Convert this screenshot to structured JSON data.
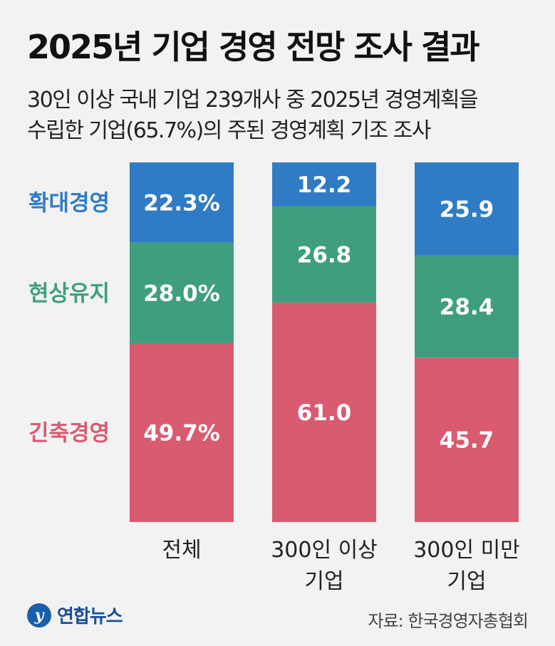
{
  "title": "2025년 기업 경영 전망 조사 결과",
  "subtitle_lines": [
    "30인 이상 국내 기업 239개사 중 2025년 경영계획을",
    "수립한 기업(65.7%)의 주된 경영계획 기조 조사"
  ],
  "chart_data": {
    "type": "bar",
    "stacked": true,
    "normalized_percent": true,
    "ylim": [
      0,
      100
    ],
    "categories": [
      [
        "전체"
      ],
      [
        "300인 이상",
        "기업"
      ],
      [
        "300인 미만",
        "기업"
      ]
    ],
    "series": [
      {
        "name": "긴축경영",
        "color": "#d95b70",
        "values": [
          49.7,
          61.0,
          45.7
        ],
        "labels": [
          "49.7%",
          "61.0",
          "45.7"
        ]
      },
      {
        "name": "현상유지",
        "color": "#3f9e80",
        "values": [
          28.0,
          26.8,
          28.4
        ],
        "labels": [
          "28.0%",
          "26.8",
          "28.4"
        ]
      },
      {
        "name": "확대경영",
        "color": "#2f7cc4",
        "values": [
          22.3,
          12.2,
          25.9
        ],
        "labels": [
          "22.3%",
          "12.2",
          "25.9"
        ]
      }
    ],
    "legend_placement": "left, beside segments",
    "grid": false
  },
  "source": "자료: 한국경영자총협회",
  "logo": {
    "mark": "y",
    "text": "연합뉴스"
  }
}
